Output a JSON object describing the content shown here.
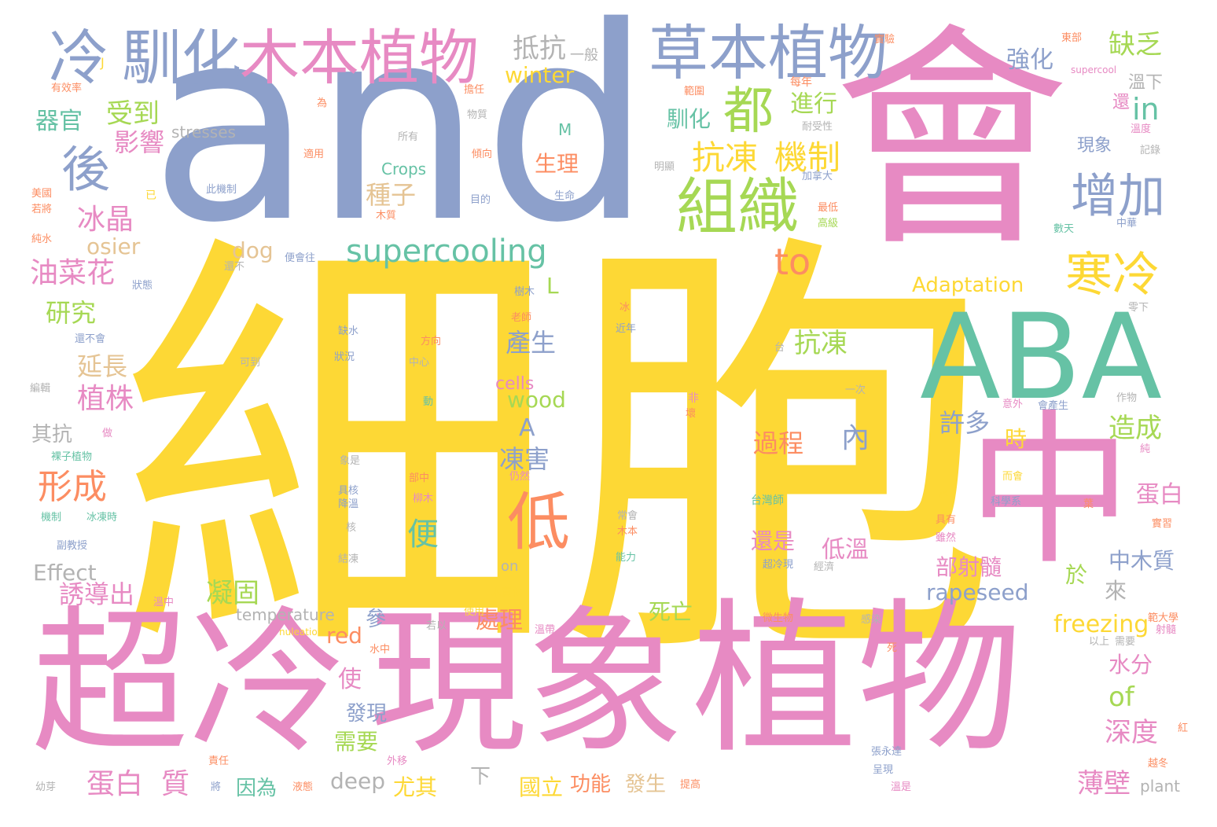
{
  "colors": {
    "yellow": "#fdd835",
    "pink": "#e78ac3",
    "blue": "#8da0cb",
    "teal": "#66c2a5",
    "orange": "#fc8d62",
    "green": "#a6d854",
    "tan": "#e5c494",
    "gray": "#b3b3b3"
  },
  "words": {
    "w001": "細胞",
    "w002": "and",
    "w003": "會",
    "w004": "超冷",
    "w005": "現象",
    "w006": "植物",
    "w007": "中",
    "w008": "ABA",
    "w009": "馴化",
    "w010": "木本植物",
    "w011": "冷",
    "w012": "草本植物",
    "w013": "組織",
    "w014": "都",
    "w015": "後",
    "w016": "增加",
    "w017": "寒冷",
    "w018": "低",
    "w019": "抗凍",
    "w020": "機制",
    "w021": "supercooling",
    "w022": "to",
    "w023": "形成",
    "w024": "油菜花",
    "w025": "冰晶",
    "w026": "植株",
    "w027": "延長",
    "w028": "研究",
    "w029": "受到",
    "w030": "影響",
    "w031": "器官",
    "w032": "抵抗",
    "w033": "一般",
    "w034": "winter",
    "w035": "強化",
    "w036": "缺乏",
    "w037": "in",
    "w038": "進行",
    "w039": "馴化",
    "w040": "生理",
    "w041": "種子",
    "w042": "dog",
    "w043": "osier",
    "w044": "L",
    "w045": "Adaptation",
    "w046": "產生",
    "w047": "抗凍",
    "w048": "cells",
    "w049": "wood",
    "w050": "A",
    "w051": "凍害",
    "w052": "過程",
    "w053": "內",
    "w054": "許多",
    "w055": "時",
    "w056": "造成",
    "w057": "蛋白",
    "w058": "中木質",
    "w059": "便",
    "w060": "還是",
    "w061": "低溫",
    "w062": "部射髓",
    "w063": "於",
    "w064": "來",
    "w065": "rapeseed",
    "w066": "freezing",
    "w067": "凝固",
    "w068": "誘導出",
    "w069": "Effect",
    "w070": "temperature",
    "w071": "參",
    "w072": "處理",
    "w073": "死亡",
    "w074": "使",
    "w075": "red",
    "w076": "發現",
    "w077": "需要",
    "w078": "水分",
    "w079": "of",
    "w080": "深度",
    "w081": "蛋白",
    "w082": "質",
    "w083": "因為",
    "w084": "deep",
    "w085": "尤其",
    "w086": "國立",
    "w087": "功能",
    "w088": "發生",
    "w089": "薄壁",
    "w090": "plant",
    "w091": "下",
    "w092": "其抗",
    "w093": "stresses",
    "w094": "Crops",
    "w095": "M",
    "w096": "溫下",
    "w097": "現象",
    "w098": "還",
    "w099": "on",
    "w100": "supercool",
    "w101": "實驗",
    "w102": "東部",
    "w103": "每年",
    "w104": "耐受性",
    "w105": "溫度",
    "w106": "記錄",
    "w107": "加拿大",
    "w108": "最低",
    "w109": "高級",
    "w110": "數天",
    "w111": "中華",
    "w112": "範圍",
    "w113": "有效率",
    "w114": "為",
    "w115": "物質",
    "w116": "所有",
    "w117": "傾向",
    "w118": "適用",
    "w119": "此機制",
    "w120": "目的",
    "w121": "生命",
    "w122": "木質",
    "w123": "已",
    "w124": "美國",
    "w125": "若將",
    "w126": "純水",
    "w127": "便會往",
    "w128": "還不",
    "w129": "狀態",
    "w130": "明顯",
    "w131": "樹木",
    "w132": "缺水",
    "w133": "方向",
    "w134": "老師",
    "w135": "近年",
    "w136": "還不會",
    "w137": "狀況",
    "w138": "中心",
    "w139": "可到",
    "w140": "編輯",
    "w141": "動",
    "w142": "一次",
    "w143": "台",
    "w144": "非",
    "w145": "意外",
    "w146": "會產生",
    "w147": "作物",
    "w148": "做",
    "w149": "裸子植物",
    "w150": "象是",
    "w151": "仍然",
    "w152": "部中",
    "w153": "具核",
    "w154": "降溫",
    "w155": "核",
    "w156": "柳木",
    "w157": "機制",
    "w158": "冰凍時",
    "w159": "而會",
    "w160": "台灣師",
    "w161": "水",
    "w162": "科學系",
    "w163": "具有",
    "w164": "雖然",
    "w165": "常會",
    "w166": "木本",
    "w167": "能力",
    "w168": "副教授",
    "w169": "結凍",
    "w170": "超冷現",
    "w171": "經濟",
    "w172": "木質化",
    "w173": "溫中",
    "w174": "微生物",
    "w175": "感染",
    "w176": "範大學",
    "w177": "若以",
    "w178": "nuleation",
    "w179": "溫帶",
    "w180": "死",
    "w181": "水中",
    "w182": "以上",
    "w183": "責任",
    "w184": "外移",
    "w185": "張永達",
    "w186": "呈現",
    "w187": "紅",
    "w188": "越冬",
    "w189": "幼芽",
    "w190": "將",
    "w191": "液態",
    "w192": "提高",
    "w193": "溫是",
    "w194": "使用",
    "w195": "J",
    "w196": "需要",
    "w197": "冰",
    "w198": "零下",
    "w199": "實習",
    "w200": "純",
    "w201": "射髓",
    "w202": "壞",
    "w203": "葉",
    "w204": "擔任"
  }
}
